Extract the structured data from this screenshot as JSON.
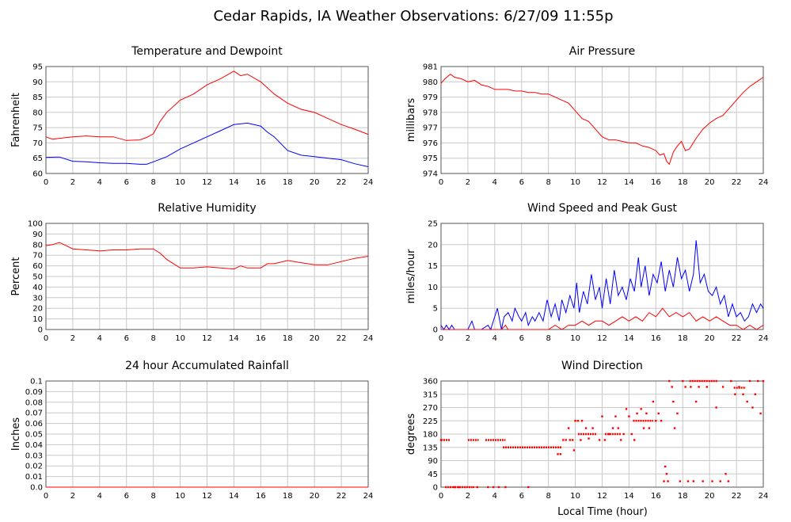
{
  "page": {
    "title": "Cedar Rapids, IA Weather Observations: 6/27/09 11:55p",
    "xlabel": "Local Time (hour)"
  },
  "colors": {
    "red": "#ff0000",
    "blue": "#0000ff",
    "grid": "#c8c8c8",
    "frame": "#555555"
  },
  "chart_data": [
    {
      "id": "temp",
      "type": "line",
      "title": "Temperature and Dewpoint",
      "ylabel": "Fahrenheit",
      "xlim": [
        0,
        24
      ],
      "ylim": [
        60,
        95
      ],
      "xticks": [
        0,
        2,
        4,
        6,
        8,
        10,
        12,
        14,
        16,
        18,
        20,
        22,
        24
      ],
      "yticks": [
        60,
        65,
        70,
        75,
        80,
        85,
        90,
        95
      ],
      "grid": true,
      "series": [
        {
          "color": "#ff0000",
          "x": [
            0,
            0.5,
            1,
            2,
            3,
            4,
            5,
            6,
            7,
            7.5,
            8,
            8.5,
            9,
            10,
            11,
            12,
            13,
            14,
            14.5,
            15,
            16,
            17,
            18,
            19,
            20,
            21,
            22,
            23,
            24
          ],
          "y": [
            72,
            71.2,
            71.5,
            72,
            72.3,
            72,
            72,
            70.8,
            71,
            71.8,
            73,
            77,
            80,
            84,
            86,
            89,
            91,
            93.5,
            92,
            92.5,
            90,
            86,
            83,
            81,
            80,
            78,
            76,
            74.5,
            72.8
          ]
        },
        {
          "color": "#0000ff",
          "x": [
            0,
            1,
            2,
            3,
            4,
            5,
            6,
            7,
            7.5,
            8,
            9,
            10,
            11,
            12,
            13,
            14,
            15,
            16,
            16.5,
            17,
            18,
            19,
            20,
            21,
            22,
            23,
            24
          ],
          "y": [
            65.3,
            65.4,
            64,
            63.8,
            63.5,
            63.3,
            63.3,
            63,
            63,
            63.8,
            65.5,
            68,
            70,
            72,
            74,
            76,
            76.5,
            75.5,
            73.5,
            72,
            67.5,
            66,
            65.5,
            65,
            64.5,
            63.2,
            62.2
          ]
        }
      ]
    },
    {
      "id": "pressure",
      "type": "line",
      "title": "Air Pressure",
      "ylabel": "millibars",
      "xlim": [
        0,
        24
      ],
      "ylim": [
        974,
        981
      ],
      "xticks": [
        0,
        2,
        4,
        6,
        8,
        10,
        12,
        14,
        16,
        18,
        20,
        22,
        24
      ],
      "yticks": [
        974,
        975,
        976,
        977,
        978,
        979,
        980,
        981
      ],
      "grid": true,
      "series": [
        {
          "color": "#ff0000",
          "x": [
            0,
            0.3,
            0.7,
            1,
            1.5,
            2,
            2.5,
            3,
            3.5,
            4,
            4.5,
            5,
            5.5,
            6,
            6.5,
            7,
            7.5,
            8,
            8.5,
            9,
            9.5,
            10,
            10.5,
            11,
            11.5,
            12,
            12.5,
            13,
            13.5,
            14,
            14.5,
            15,
            15.5,
            16,
            16.3,
            16.6,
            16.8,
            17,
            17.3,
            17.6,
            17.9,
            18.2,
            18.5,
            19,
            19.5,
            20,
            20.5,
            21,
            21.5,
            22,
            22.5,
            23,
            23.5,
            24
          ],
          "y": [
            979.9,
            980.2,
            980.5,
            980.3,
            980.2,
            980.0,
            980.1,
            979.8,
            979.7,
            979.5,
            979.5,
            979.5,
            979.4,
            979.4,
            979.3,
            979.3,
            979.2,
            979.2,
            979.0,
            978.8,
            978.6,
            978.1,
            977.6,
            977.4,
            976.9,
            976.4,
            976.2,
            976.2,
            976.1,
            976.0,
            976.0,
            975.8,
            975.7,
            975.5,
            975.2,
            975.3,
            974.8,
            974.6,
            975.4,
            975.8,
            976.1,
            975.5,
            975.6,
            976.3,
            976.9,
            977.3,
            977.6,
            977.8,
            978.3,
            978.8,
            979.3,
            979.7,
            980.0,
            980.3
          ]
        }
      ]
    },
    {
      "id": "humidity",
      "type": "line",
      "title": "Relative Humidity",
      "ylabel": "Percent",
      "xlim": [
        0,
        24
      ],
      "ylim": [
        0,
        100
      ],
      "xticks": [
        0,
        2,
        4,
        6,
        8,
        10,
        12,
        14,
        16,
        18,
        20,
        22,
        24
      ],
      "yticks": [
        0,
        10,
        20,
        30,
        40,
        50,
        60,
        70,
        80,
        90,
        100
      ],
      "grid": true,
      "series": [
        {
          "color": "#ff0000",
          "x": [
            0,
            0.5,
            1,
            1.5,
            2,
            3,
            4,
            5,
            6,
            7,
            8,
            8.5,
            9,
            9.5,
            10,
            11,
            12,
            13,
            14,
            14.5,
            15,
            16,
            16.5,
            17,
            18,
            19,
            20,
            21,
            22,
            23,
            24
          ],
          "y": [
            79,
            80,
            82,
            79,
            76,
            75,
            74,
            75,
            75,
            76,
            76,
            72,
            66,
            62,
            58,
            58,
            59,
            58,
            57,
            60,
            58,
            58,
            62,
            62,
            65,
            63,
            61,
            61,
            64,
            67,
            69
          ]
        }
      ]
    },
    {
      "id": "wind",
      "type": "line",
      "title": "Wind Speed and Peak Gust",
      "ylabel": "miles/hour",
      "xlim": [
        0,
        24
      ],
      "ylim": [
        0,
        25
      ],
      "xticks": [
        0,
        2,
        4,
        6,
        8,
        10,
        12,
        14,
        16,
        18,
        20,
        22,
        24
      ],
      "yticks": [
        0,
        5,
        10,
        15,
        20,
        25
      ],
      "grid": true,
      "series": [
        {
          "color": "#0000ff",
          "x": [
            0,
            0.2,
            0.4,
            0.6,
            0.8,
            1,
            1.5,
            2,
            2.3,
            2.5,
            3,
            3.5,
            3.7,
            4,
            4.2,
            4.5,
            4.7,
            5,
            5.3,
            5.5,
            5.8,
            6,
            6.3,
            6.5,
            6.8,
            7,
            7.3,
            7.6,
            7.9,
            8.2,
            8.5,
            8.8,
            9,
            9.3,
            9.6,
            9.9,
            10.1,
            10.3,
            10.6,
            10.9,
            11.2,
            11.5,
            11.8,
            12,
            12.3,
            12.6,
            12.9,
            13.2,
            13.5,
            13.8,
            14.1,
            14.4,
            14.7,
            14.9,
            15.2,
            15.5,
            15.8,
            16.1,
            16.4,
            16.7,
            17,
            17.3,
            17.6,
            17.9,
            18.2,
            18.5,
            18.8,
            19,
            19.3,
            19.6,
            19.9,
            20.2,
            20.5,
            20.8,
            21.1,
            21.4,
            21.7,
            22,
            22.3,
            22.6,
            22.9,
            23.2,
            23.5,
            23.8,
            24
          ],
          "y": [
            1,
            0,
            1,
            0,
            1,
            0,
            0,
            0,
            2,
            0,
            0,
            1,
            0,
            3,
            5,
            0,
            3,
            4,
            2,
            5,
            3,
            2,
            4,
            1,
            3,
            2,
            4,
            2,
            7,
            3,
            6,
            2,
            7,
            4,
            8,
            5,
            11,
            4,
            9,
            6,
            13,
            7,
            10,
            5,
            12,
            6,
            14,
            8,
            10,
            7,
            12,
            9,
            17,
            10,
            15,
            8,
            13,
            11,
            16,
            9,
            14,
            10,
            17,
            12,
            14,
            9,
            13,
            21,
            11,
            13,
            9,
            8,
            10,
            6,
            8,
            3,
            6,
            3,
            4,
            2,
            3,
            6,
            4,
            6,
            5
          ]
        },
        {
          "color": "#ff0000",
          "x": [
            0,
            4.5,
            4.8,
            5,
            5.5,
            6,
            6.5,
            7,
            7.5,
            8,
            8.5,
            9,
            9.5,
            10,
            10.5,
            11,
            11.5,
            12,
            12.5,
            13,
            13.5,
            14,
            14.5,
            15,
            15.5,
            16,
            16.5,
            17,
            17.5,
            18,
            18.5,
            19,
            19.5,
            20,
            20.5,
            21,
            21.5,
            22,
            22.5,
            23,
            23.5,
            24
          ],
          "y": [
            0,
            0,
            1,
            0,
            0,
            0,
            0,
            0,
            0,
            0,
            1,
            0,
            1,
            1,
            2,
            1,
            2,
            2,
            1,
            2,
            3,
            2,
            3,
            2,
            4,
            3,
            5,
            3,
            4,
            3,
            4,
            2,
            3,
            2,
            3,
            2,
            1,
            1,
            0,
            1,
            0,
            1
          ]
        }
      ]
    },
    {
      "id": "rain",
      "type": "line",
      "title": "24 hour Accumulated Rainfall",
      "ylabel": "Inches",
      "xlim": [
        0,
        24
      ],
      "ylim": [
        0.0,
        0.1
      ],
      "xticks": [
        0,
        2,
        4,
        6,
        8,
        10,
        12,
        14,
        16,
        18,
        20,
        22,
        24
      ],
      "yticks": [
        0.0,
        0.01,
        0.02,
        0.03,
        0.04,
        0.05,
        0.06,
        0.07,
        0.08,
        0.09,
        0.1
      ],
      "ytick_labels": [
        "0.0",
        "0.01",
        "0.02",
        "0.03",
        "0.04",
        "0.05",
        "0.06",
        "0.07",
        "0.08",
        "0.09",
        "0.1"
      ],
      "grid": true,
      "series": [
        {
          "color": "#ff0000",
          "x": [
            0,
            24
          ],
          "y": [
            0,
            0
          ]
        }
      ]
    },
    {
      "id": "direction",
      "type": "scatter",
      "title": "Wind Direction",
      "ylabel": "degrees",
      "xlim": [
        0,
        24
      ],
      "ylim": [
        0,
        360
      ],
      "xticks": [
        0,
        2,
        4,
        6,
        8,
        10,
        12,
        14,
        16,
        18,
        20,
        22,
        24
      ],
      "yticks": [
        0,
        45,
        90,
        135,
        180,
        225,
        270,
        315,
        360
      ],
      "grid": true,
      "segments": [
        {
          "x0": 0,
          "x1": 0.7,
          "y": 160
        },
        {
          "x0": 2,
          "x1": 2.8,
          "y": 160
        },
        {
          "x0": 3.3,
          "x1": 4.8,
          "y": 160
        },
        {
          "x0": 4.6,
          "x1": 9.0,
          "y": 135
        },
        {
          "x0": 0.3,
          "x1": 2.3,
          "y": 0
        },
        {
          "x0": 10.2,
          "x1": 11.6,
          "y": 180
        },
        {
          "x0": 12.2,
          "x1": 13.4,
          "y": 180
        },
        {
          "x0": 14.3,
          "x1": 15.8,
          "y": 225
        },
        {
          "x0": 18.5,
          "x1": 20.6,
          "y": 360
        },
        {
          "x0": 21.8,
          "x1": 22.7,
          "y": 337
        }
      ],
      "points": [
        {
          "x": 0.0,
          "y": 160
        },
        {
          "x": 1.0,
          "y": 0
        },
        {
          "x": 1.3,
          "y": 0
        },
        {
          "x": 2.4,
          "y": 0
        },
        {
          "x": 2.7,
          "y": 0
        },
        {
          "x": 3.5,
          "y": 0
        },
        {
          "x": 3.9,
          "y": 0
        },
        {
          "x": 4.3,
          "y": 0
        },
        {
          "x": 4.8,
          "y": 0
        },
        {
          "x": 6.5,
          "y": 0
        },
        {
          "x": 8.7,
          "y": 112
        },
        {
          "x": 8.9,
          "y": 112
        },
        {
          "x": 9.1,
          "y": 160
        },
        {
          "x": 9.3,
          "y": 160
        },
        {
          "x": 9.5,
          "y": 200
        },
        {
          "x": 9.6,
          "y": 160
        },
        {
          "x": 9.8,
          "y": 160
        },
        {
          "x": 9.9,
          "y": 125
        },
        {
          "x": 10.0,
          "y": 225
        },
        {
          "x": 10.2,
          "y": 225
        },
        {
          "x": 10.4,
          "y": 160
        },
        {
          "x": 10.5,
          "y": 225
        },
        {
          "x": 10.8,
          "y": 200
        },
        {
          "x": 11.0,
          "y": 165
        },
        {
          "x": 11.3,
          "y": 200
        },
        {
          "x": 11.8,
          "y": 160
        },
        {
          "x": 12.0,
          "y": 240
        },
        {
          "x": 12.2,
          "y": 160
        },
        {
          "x": 12.5,
          "y": 180
        },
        {
          "x": 12.8,
          "y": 200
        },
        {
          "x": 13.0,
          "y": 240
        },
        {
          "x": 13.2,
          "y": 200
        },
        {
          "x": 13.4,
          "y": 160
        },
        {
          "x": 13.6,
          "y": 180
        },
        {
          "x": 13.8,
          "y": 265
        },
        {
          "x": 14.0,
          "y": 240
        },
        {
          "x": 14.2,
          "y": 180
        },
        {
          "x": 14.4,
          "y": 160
        },
        {
          "x": 14.6,
          "y": 250
        },
        {
          "x": 14.9,
          "y": 265
        },
        {
          "x": 15.1,
          "y": 200
        },
        {
          "x": 15.3,
          "y": 250
        },
        {
          "x": 15.5,
          "y": 200
        },
        {
          "x": 15.8,
          "y": 290
        },
        {
          "x": 16.0,
          "y": 225
        },
        {
          "x": 16.2,
          "y": 250
        },
        {
          "x": 16.4,
          "y": 225
        },
        {
          "x": 16.6,
          "y": 20
        },
        {
          "x": 16.7,
          "y": 70
        },
        {
          "x": 16.8,
          "y": 45
        },
        {
          "x": 16.9,
          "y": 20
        },
        {
          "x": 17.0,
          "y": 360
        },
        {
          "x": 17.2,
          "y": 340
        },
        {
          "x": 17.3,
          "y": 290
        },
        {
          "x": 17.4,
          "y": 200
        },
        {
          "x": 17.6,
          "y": 250
        },
        {
          "x": 17.8,
          "y": 20
        },
        {
          "x": 18.0,
          "y": 360
        },
        {
          "x": 18.2,
          "y": 340
        },
        {
          "x": 18.4,
          "y": 20
        },
        {
          "x": 18.6,
          "y": 340
        },
        {
          "x": 18.8,
          "y": 20
        },
        {
          "x": 19.0,
          "y": 290
        },
        {
          "x": 19.2,
          "y": 340
        },
        {
          "x": 19.5,
          "y": 20
        },
        {
          "x": 19.8,
          "y": 340
        },
        {
          "x": 20.2,
          "y": 20
        },
        {
          "x": 20.5,
          "y": 270
        },
        {
          "x": 20.8,
          "y": 20
        },
        {
          "x": 21.0,
          "y": 340
        },
        {
          "x": 21.2,
          "y": 45
        },
        {
          "x": 21.4,
          "y": 20
        },
        {
          "x": 21.6,
          "y": 360
        },
        {
          "x": 21.9,
          "y": 315
        },
        {
          "x": 22.2,
          "y": 340
        },
        {
          "x": 22.5,
          "y": 315
        },
        {
          "x": 22.8,
          "y": 290
        },
        {
          "x": 23.0,
          "y": 360
        },
        {
          "x": 23.2,
          "y": 270
        },
        {
          "x": 23.4,
          "y": 315
        },
        {
          "x": 23.6,
          "y": 360
        },
        {
          "x": 23.8,
          "y": 250
        },
        {
          "x": 24.0,
          "y": 360
        }
      ]
    }
  ]
}
